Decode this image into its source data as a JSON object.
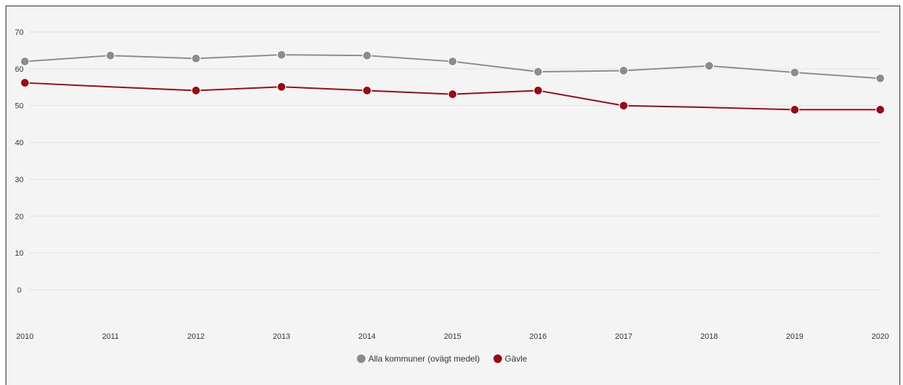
{
  "chart_data": {
    "type": "line",
    "x": [
      "2010",
      "2011",
      "2012",
      "2013",
      "2014",
      "2015",
      "2016",
      "2017",
      "2018",
      "2019",
      "2020"
    ],
    "ylim": [
      -10,
      70
    ],
    "yticks": [
      "70",
      "60",
      "50",
      "40",
      "30",
      "20",
      "10",
      "0"
    ],
    "grid": true,
    "legend_position": "bottom",
    "series": [
      {
        "name": "Alla kommuner (ovägt medel)",
        "color": "#8c8c8c",
        "values": [
          62,
          63.6,
          62.8,
          63.8,
          63.6,
          62,
          59.2,
          59.5,
          60.8,
          59,
          57.4
        ],
        "markers": [
          true,
          true,
          true,
          true,
          true,
          true,
          true,
          true,
          true,
          true,
          true
        ]
      },
      {
        "name": "Gävle",
        "color": "#9b0a14",
        "values": [
          56.2,
          null,
          54.1,
          55.1,
          54.1,
          53.1,
          54.1,
          50,
          null,
          48.9,
          48.9
        ],
        "line_values": [
          56.2,
          55.1,
          54.1,
          55.1,
          54.1,
          53.1,
          54.1,
          50,
          49.5,
          48.9,
          48.9
        ],
        "markers": [
          true,
          false,
          true,
          true,
          true,
          true,
          true,
          true,
          false,
          true,
          true
        ]
      }
    ]
  }
}
